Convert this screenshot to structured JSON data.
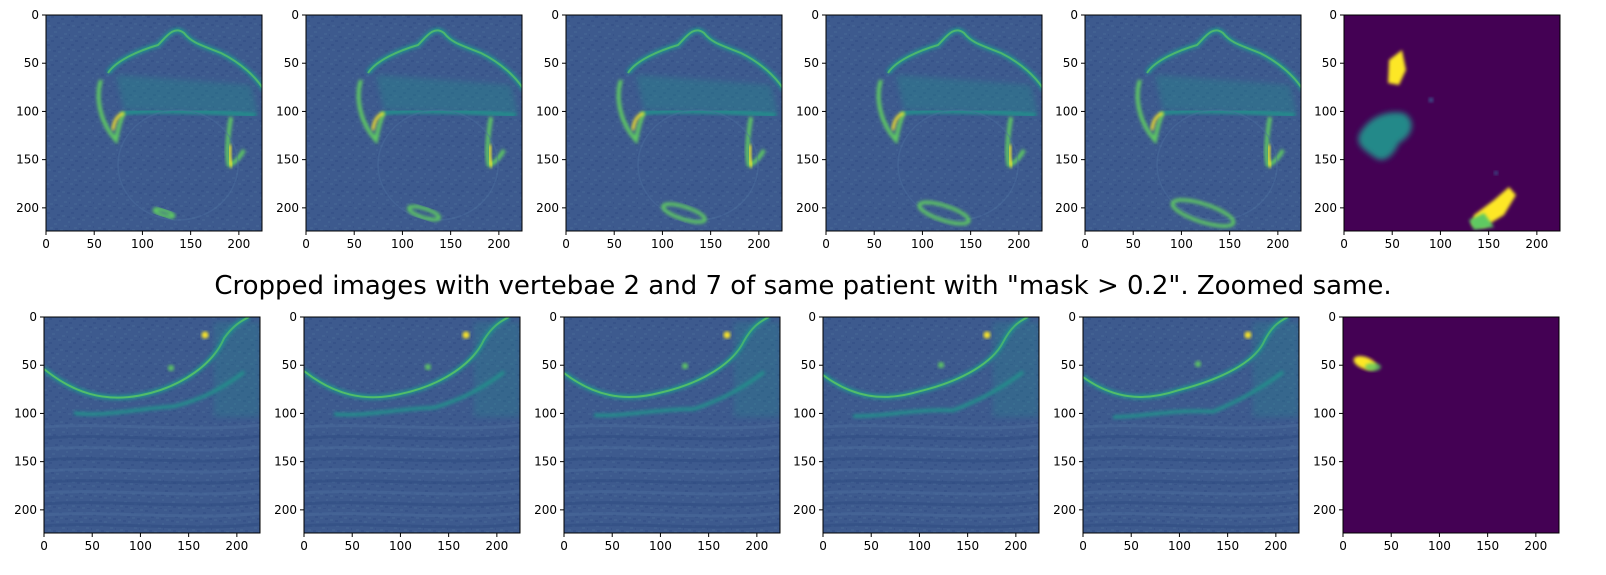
{
  "figure": {
    "caption": "Cropped images with vertebae 2 and 7 of same patient with \"mask > 0.2\". Zoomed same."
  },
  "axes": {
    "x_ticks": [
      "0",
      "50",
      "100",
      "150",
      "200"
    ],
    "y_ticks": [
      "0",
      "50",
      "100",
      "150",
      "200"
    ],
    "x_tick_values": [
      0,
      50,
      100,
      150,
      200
    ],
    "y_tick_values": [
      0,
      50,
      100,
      150,
      200
    ],
    "data_range": [
      0,
      224
    ]
  },
  "colors": {
    "viridis_dark": "#440154",
    "viridis_blue": "#3b528b",
    "viridis_teal": "#21918c",
    "viridis_green": "#5ec962",
    "viridis_yellow": "#fde725",
    "ct_background": "#3d5a8e"
  },
  "rows": [
    {
      "name": "vertebra-2",
      "panels": [
        {
          "kind": "ct-slice",
          "slice": 1
        },
        {
          "kind": "ct-slice",
          "slice": 2
        },
        {
          "kind": "ct-slice",
          "slice": 3
        },
        {
          "kind": "ct-slice",
          "slice": 4
        },
        {
          "kind": "ct-slice",
          "slice": 5
        },
        {
          "kind": "mask"
        }
      ]
    },
    {
      "name": "vertebra-7",
      "panels": [
        {
          "kind": "ct-slice",
          "slice": 1
        },
        {
          "kind": "ct-slice",
          "slice": 2
        },
        {
          "kind": "ct-slice",
          "slice": 3
        },
        {
          "kind": "ct-slice",
          "slice": 4
        },
        {
          "kind": "ct-slice",
          "slice": 5
        },
        {
          "kind": "mask"
        }
      ]
    }
  ]
}
